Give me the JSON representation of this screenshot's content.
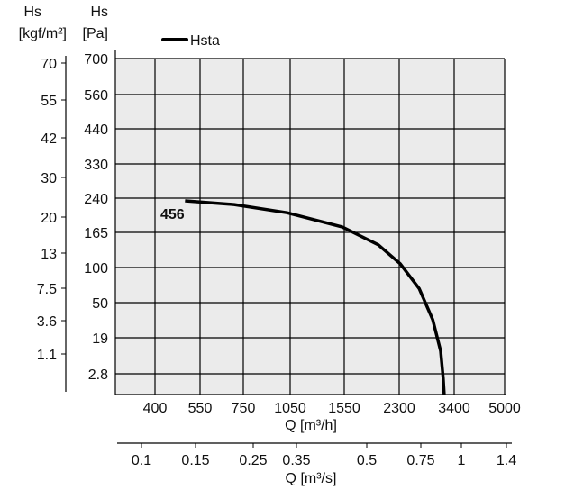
{
  "chart_data": {
    "type": "line",
    "title": "",
    "y_left_outer": {
      "label_line1": "Hs",
      "label_line2": "[kgf/m²]",
      "ticks": [
        "70",
        "55",
        "42",
        "30",
        "20",
        "13",
        "7.5",
        "3.6",
        "1.1"
      ]
    },
    "y_left_inner": {
      "label_line1": "Hs",
      "label_line2": "[Pa]",
      "ticks": [
        "700",
        "560",
        "440",
        "330",
        "240",
        "165",
        "100",
        "50",
        "19",
        "2.8"
      ],
      "tick_values": [
        700,
        560,
        440,
        330,
        240,
        165,
        100,
        50,
        19,
        2.8
      ]
    },
    "x_primary": {
      "label": "Q [m³/h]",
      "ticks": [
        "400",
        "550",
        "750",
        "1050",
        "1550",
        "2300",
        "3400",
        "5000"
      ],
      "tick_values": [
        400,
        550,
        750,
        1050,
        1550,
        2300,
        3400,
        5000
      ]
    },
    "x_secondary": {
      "label": "Q [m³/s]",
      "ticks": [
        "0.1",
        "0.15",
        "0.25",
        "0.35",
        "0.5",
        "0.75",
        "1",
        "1.4"
      ]
    },
    "grid": true,
    "legend": {
      "position": "top-left",
      "entries": [
        "Hsta"
      ]
    },
    "series": [
      {
        "name": "Hsta",
        "annotation": "456",
        "color": "#000000",
        "x": [
          500,
          708,
          1030,
          1530,
          2015,
          2320,
          2700,
          2970,
          3130,
          3180,
          3200
        ],
        "y": [
          234,
          226,
          208,
          177,
          142,
          107,
          70,
          35,
          13,
          2.2,
          0
        ]
      }
    ],
    "plot_background": "#ebebeb"
  }
}
